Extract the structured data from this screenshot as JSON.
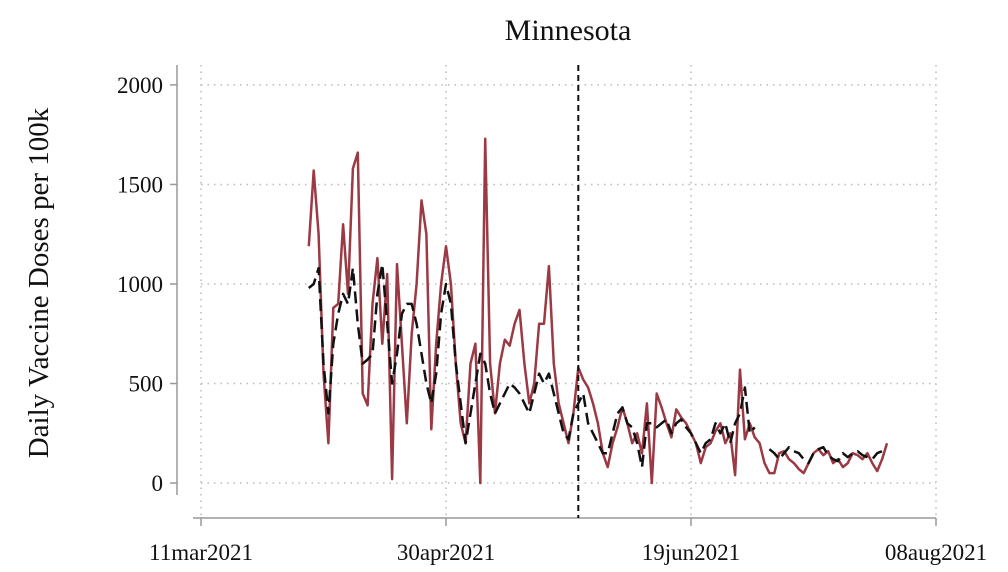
{
  "chart_data": {
    "type": "line",
    "title": "Minnesota",
    "y_label": "Daily Vaccine Doses per 100k",
    "x": [
      "2021-04-02",
      "2021-04-03",
      "2021-04-04",
      "2021-04-05",
      "2021-04-06",
      "2021-04-07",
      "2021-04-08",
      "2021-04-09",
      "2021-04-10",
      "2021-04-11",
      "2021-04-12",
      "2021-04-13",
      "2021-04-14",
      "2021-04-15",
      "2021-04-16",
      "2021-04-17",
      "2021-04-18",
      "2021-04-19",
      "2021-04-20",
      "2021-04-21",
      "2021-04-22",
      "2021-04-23",
      "2021-04-24",
      "2021-04-25",
      "2021-04-26",
      "2021-04-27",
      "2021-04-28",
      "2021-04-29",
      "2021-04-30",
      "2021-05-01",
      "2021-05-02",
      "2021-05-03",
      "2021-05-04",
      "2021-05-05",
      "2021-05-06",
      "2021-05-07",
      "2021-05-08",
      "2021-05-09",
      "2021-05-10",
      "2021-05-11",
      "2021-05-12",
      "2021-05-13",
      "2021-05-14",
      "2021-05-15",
      "2021-05-16",
      "2021-05-17",
      "2021-05-18",
      "2021-05-19",
      "2021-05-20",
      "2021-05-21",
      "2021-05-22",
      "2021-05-23",
      "2021-05-24",
      "2021-05-25",
      "2021-05-26",
      "2021-05-27",
      "2021-05-28",
      "2021-05-29",
      "2021-05-30",
      "2021-05-31",
      "2021-06-01",
      "2021-06-02",
      "2021-06-03",
      "2021-06-04",
      "2021-06-05",
      "2021-06-06",
      "2021-06-07",
      "2021-06-08",
      "2021-06-09",
      "2021-06-10",
      "2021-06-11",
      "2021-06-12",
      "2021-06-13",
      "2021-06-14",
      "2021-06-15",
      "2021-06-16",
      "2021-06-17",
      "2021-06-18",
      "2021-06-19",
      "2021-06-20",
      "2021-06-21",
      "2021-06-22",
      "2021-06-23",
      "2021-06-24",
      "2021-06-25",
      "2021-06-26",
      "2021-06-27",
      "2021-06-28",
      "2021-06-29",
      "2021-06-30",
      "2021-07-01",
      "2021-07-02",
      "2021-07-03",
      "2021-07-04",
      "2021-07-05",
      "2021-07-06",
      "2021-07-07",
      "2021-07-08",
      "2021-07-09",
      "2021-07-10",
      "2021-07-11",
      "2021-07-12",
      "2021-07-13",
      "2021-07-14",
      "2021-07-15",
      "2021-07-16",
      "2021-07-17",
      "2021-07-18",
      "2021-07-19",
      "2021-07-20",
      "2021-07-21",
      "2021-07-22",
      "2021-07-23",
      "2021-07-24",
      "2021-07-25",
      "2021-07-26",
      "2021-07-27",
      "2021-07-28",
      "2021-07-29"
    ],
    "series": [
      {
        "color": "#9b3a45",
        "style": "solid",
        "values": [
          1190,
          1570,
          1250,
          550,
          200,
          880,
          900,
          1300,
          950,
          1580,
          1660,
          450,
          390,
          900,
          1130,
          700,
          1050,
          20,
          1100,
          700,
          300,
          750,
          1000,
          1420,
          1250,
          270,
          700,
          1000,
          1190,
          1000,
          600,
          300,
          200,
          600,
          700,
          0,
          1730,
          600,
          350,
          600,
          720,
          690,
          800,
          870,
          600,
          400,
          500,
          800,
          800,
          1090,
          600,
          400,
          300,
          200,
          350,
          580,
          520,
          480,
          400,
          300,
          150,
          80,
          200,
          280,
          380,
          300,
          200,
          250,
          150,
          400,
          0,
          450,
          380,
          300,
          230,
          370,
          330,
          300,
          250,
          200,
          100,
          180,
          200,
          260,
          300,
          200,
          250,
          40,
          570,
          220,
          300,
          230,
          200,
          100,
          50,
          50,
          150,
          160,
          120,
          100,
          70,
          50,
          100,
          150,
          170,
          140,
          160,
          100,
          120,
          80,
          100,
          150,
          140,
          120,
          150,
          100,
          60,
          120,
          200
        ]
      },
      {
        "color": "#111111",
        "style": "dashed",
        "values": [
          980,
          1000,
          1080,
          600,
          350,
          700,
          850,
          950,
          900,
          1080,
          800,
          600,
          620,
          650,
          950,
          1100,
          800,
          500,
          650,
          850,
          900,
          900,
          800,
          650,
          500,
          400,
          550,
          850,
          1000,
          900,
          600,
          400,
          200,
          350,
          500,
          650,
          600,
          450,
          350,
          400,
          450,
          500,
          480,
          450,
          400,
          350,
          450,
          550,
          500,
          550,
          450,
          350,
          250,
          220,
          350,
          400,
          450,
          300,
          250,
          200,
          150,
          150,
          250,
          350,
          380,
          300,
          280,
          200,
          80,
          300,
          300,
          280,
          300,
          320,
          250,
          300,
          320,
          280,
          250,
          200,
          150,
          200,
          220,
          300,
          250,
          300,
          200,
          300,
          350,
          480,
          250,
          280,
          null,
          null,
          170,
          150,
          120,
          150,
          180,
          160,
          150,
          120,
          100,
          150,
          170,
          180,
          140,
          120,
          110,
          150,
          130,
          150,
          160,
          140,
          130,
          120,
          150,
          160,
          null
        ]
      }
    ],
    "vline": "2021-05-27",
    "xlim": [
      "2021-03-11",
      "2021-08-08"
    ],
    "xticks": [
      {
        "value": "2021-03-11",
        "label": "11mar2021"
      },
      {
        "value": "2021-04-30",
        "label": "30apr2021"
      },
      {
        "value": "2021-06-19",
        "label": "19jun2021"
      },
      {
        "value": "2021-08-08",
        "label": "08aug2021"
      }
    ],
    "ylim": [
      -60,
      2100
    ],
    "yticks": [
      0,
      500,
      1000,
      1500,
      2000
    ],
    "grid": true
  }
}
